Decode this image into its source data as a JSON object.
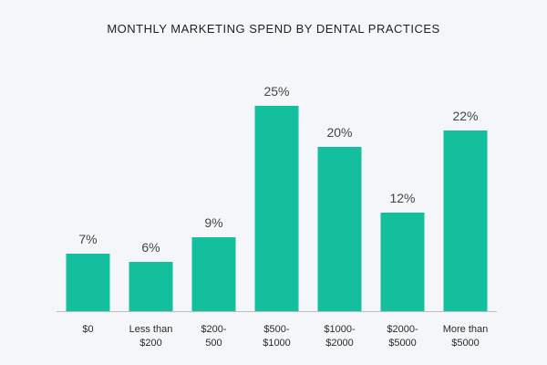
{
  "chart_data": {
    "type": "bar",
    "title": "MONTHLY MARKETING SPEND BY DENTAL PRACTICES",
    "categories": [
      [
        "$0"
      ],
      [
        "Less than",
        "$200"
      ],
      [
        "$200-",
        "500"
      ],
      [
        "$500-",
        "$1000"
      ],
      [
        "$1000-",
        "$2000"
      ],
      [
        "$2000-",
        "$5000"
      ],
      [
        "More than",
        "$5000"
      ]
    ],
    "values": [
      7,
      6,
      9,
      25,
      20,
      12,
      22
    ],
    "value_labels": [
      "7%",
      "6%",
      "9%",
      "25%",
      "20%",
      "12%",
      "22%"
    ],
    "ylim": [
      0,
      30
    ],
    "grid": false,
    "bar_color": "#13bf9c",
    "axis_color": "#bdbdbd"
  }
}
